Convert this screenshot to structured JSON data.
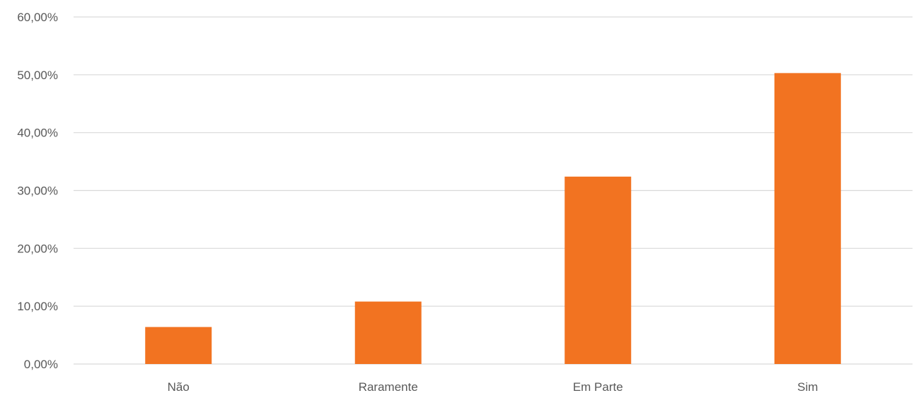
{
  "chart_data": {
    "type": "bar",
    "title": "",
    "xlabel": "",
    "ylabel": "",
    "categories": [
      "Não",
      "Raramente",
      "Em Parte",
      "Sim"
    ],
    "values": [
      6.4,
      10.8,
      32.4,
      50.3
    ],
    "ylim": [
      0,
      60
    ],
    "yticks": [
      0,
      10,
      20,
      30,
      40,
      50,
      60
    ],
    "ytick_labels": [
      "0,00%",
      "10,00%",
      "20,00%",
      "30,00%",
      "40,00%",
      "50,00%",
      "60,00%"
    ],
    "grid": true,
    "legend": "none",
    "bar_color": "#f27321"
  }
}
